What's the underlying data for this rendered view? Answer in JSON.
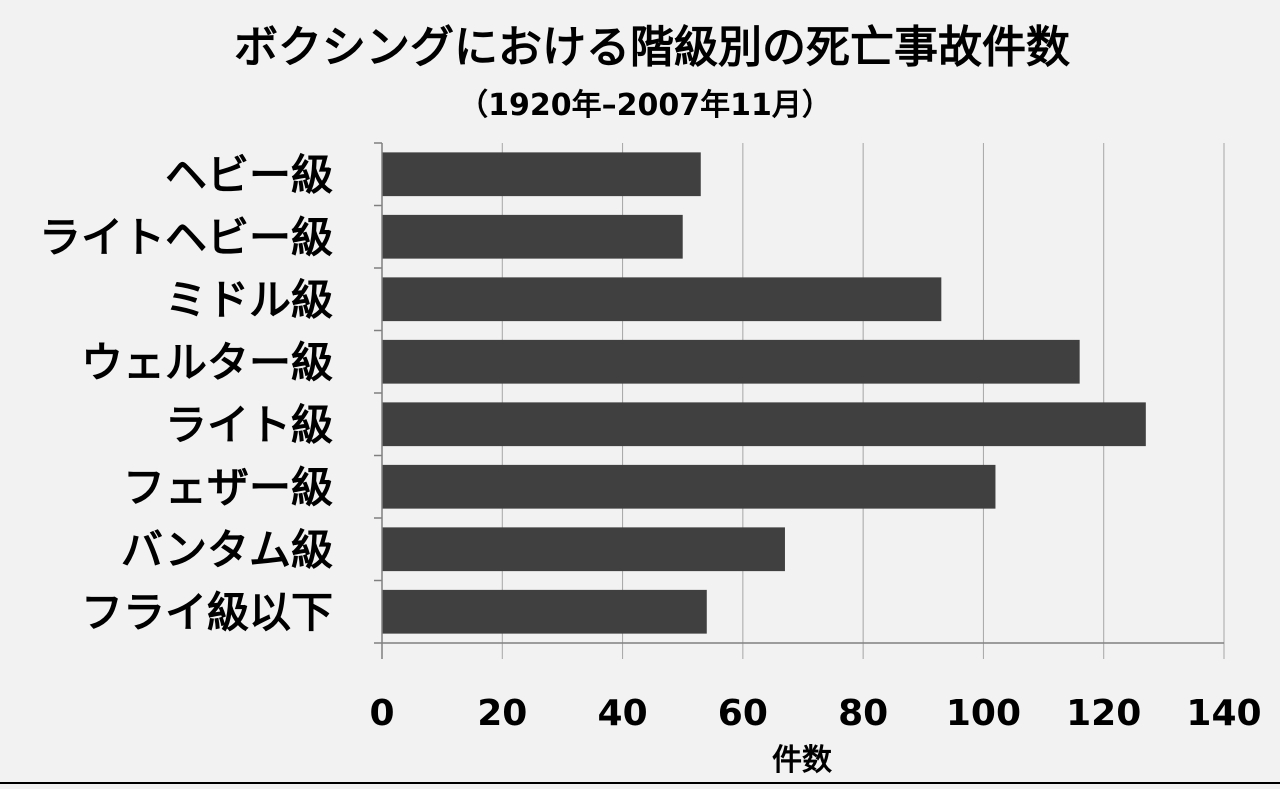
{
  "chart_data": {
    "type": "bar",
    "orientation": "horizontal",
    "title": "ボクシングにおける階級別の死亡事故件数",
    "subtitle": "（1920年–2007年11月）",
    "xlabel": "件数",
    "ylabel": "",
    "categories": [
      "ヘビー級",
      "ライトヘビー級",
      "ミドル級",
      "ウェルター級",
      "ライト級",
      "フェザー級",
      "バンタム級",
      "フライ級以下"
    ],
    "values": [
      53,
      50,
      93,
      116,
      127,
      102,
      67,
      54
    ],
    "xlim": [
      0,
      140
    ],
    "xticks": [
      0,
      20,
      40,
      60,
      80,
      100,
      120,
      140
    ],
    "grid": "vertical",
    "legend": "none",
    "colors": {
      "bar": "#404040",
      "background": "#f2f2f2",
      "grid": "#a6a6a6",
      "axis": "#808080"
    }
  }
}
